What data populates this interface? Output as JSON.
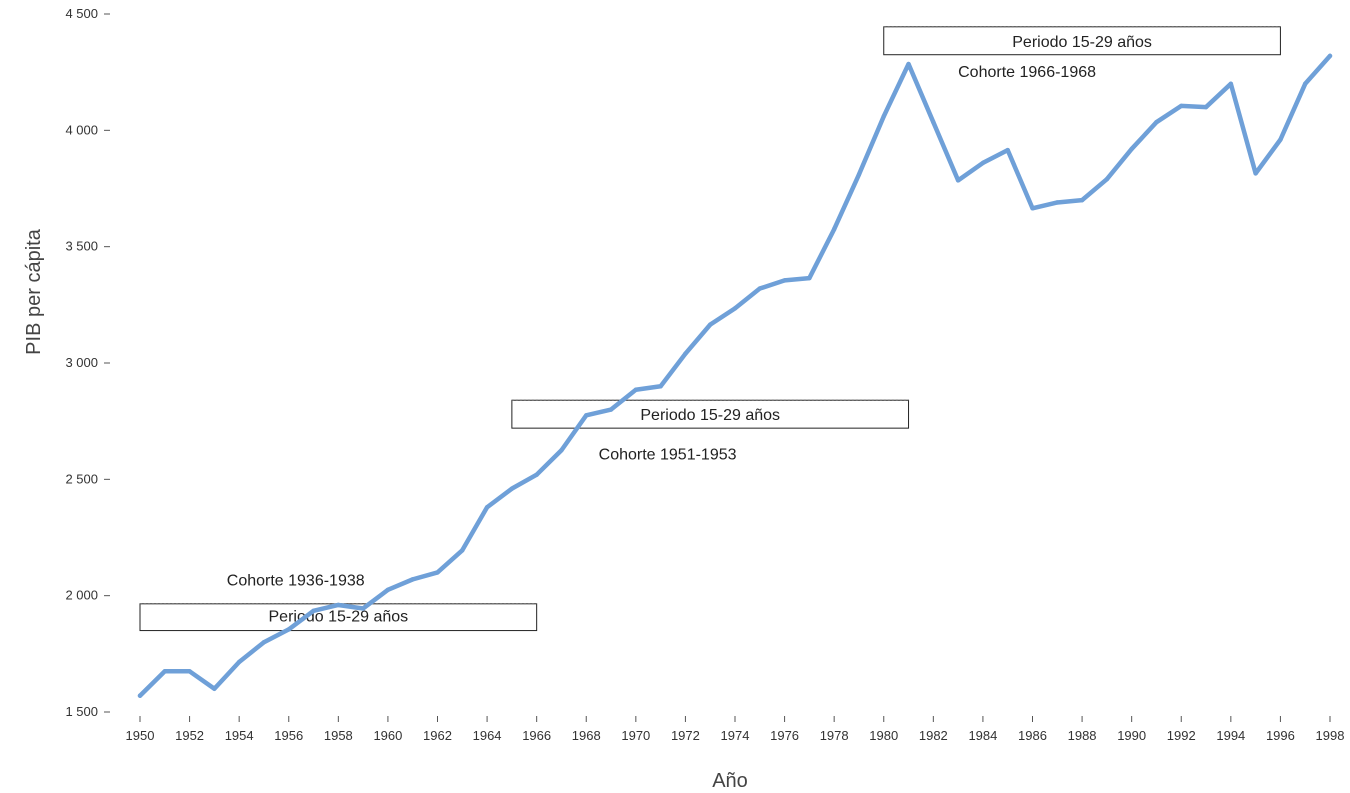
{
  "chart_data": {
    "type": "line",
    "xlabel": "Año",
    "ylabel": "PIB per cápita",
    "xlim": [
      1950,
      1998
    ],
    "ylim": [
      1500,
      4500
    ],
    "yticks": [
      1500,
      2000,
      2500,
      3000,
      3500,
      4000,
      4500
    ],
    "ytick_labels": [
      "1 500",
      "2 000",
      "2 500",
      "3 000",
      "3 500",
      "4 000",
      "4 500"
    ],
    "xticks": [
      1950,
      1952,
      1954,
      1956,
      1958,
      1960,
      1962,
      1964,
      1966,
      1968,
      1970,
      1972,
      1974,
      1976,
      1978,
      1980,
      1982,
      1984,
      1986,
      1988,
      1990,
      1992,
      1994,
      1996,
      1998
    ],
    "xtick_labels": [
      "1950",
      "1952",
      "1954",
      "1956",
      "1958",
      "1960",
      "1962",
      "1964",
      "1966",
      "1968",
      "1970",
      "1972",
      "1974",
      "1976",
      "1978",
      "1980",
      "1982",
      "1984",
      "1986",
      "1988",
      "1990",
      "1992",
      "1994",
      "1996",
      "1998"
    ],
    "series": [
      {
        "name": "PIB per cápita",
        "color": "#6fa0d8",
        "x": [
          1950,
          1951,
          1952,
          1953,
          1954,
          1955,
          1956,
          1957,
          1958,
          1959,
          1960,
          1961,
          1962,
          1963,
          1964,
          1965,
          1966,
          1967,
          1968,
          1969,
          1970,
          1971,
          1972,
          1973,
          1974,
          1975,
          1976,
          1977,
          1978,
          1979,
          1980,
          1981,
          1982,
          1983,
          1984,
          1985,
          1986,
          1987,
          1988,
          1989,
          1990,
          1991,
          1992,
          1993,
          1994,
          1995,
          1996,
          1997,
          1998
        ],
        "values": [
          1570,
          1675,
          1675,
          1600,
          1715,
          1800,
          1855,
          1935,
          1960,
          1945,
          2025,
          2070,
          2100,
          2195,
          2380,
          2460,
          2520,
          2625,
          2775,
          2800,
          2885,
          2900,
          3040,
          3165,
          3235,
          3320,
          3355,
          3365,
          3575,
          3810,
          4060,
          4285,
          4035,
          3785,
          3860,
          3915,
          3665,
          3690,
          3700,
          3790,
          3920,
          4035,
          4105,
          4100,
          4200,
          3815,
          3960,
          4200,
          4320
        ]
      }
    ],
    "annotations": [
      {
        "period": "Periodo 15-29 años",
        "cohort": "Cohorte 1936-1938",
        "start": 1950,
        "end": 1966,
        "box_y": [
          1850,
          1965
        ],
        "period_label_y": 1915,
        "cohort_label_y": 2070,
        "cohort_label_x": 1953.5
      },
      {
        "period": "Periodo 15-29 años",
        "cohort": "Cohorte 1951-1953",
        "start": 1965,
        "end": 1981,
        "box_y": [
          2720,
          2840
        ],
        "period_label_y": 2780,
        "cohort_label_y": 2610,
        "cohort_label_x": 1968.5
      },
      {
        "period": "Periodo 15-29 años",
        "cohort": "Cohorte 1966-1968",
        "start": 1980,
        "end": 1996,
        "box_y": [
          4325,
          4445
        ],
        "period_label_y": 4385,
        "cohort_label_y": 4255,
        "cohort_label_x": 1983
      }
    ]
  }
}
